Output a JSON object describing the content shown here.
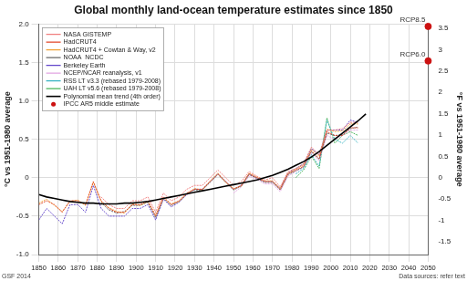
{
  "chart_data": {
    "type": "line",
    "title": "Global monthly land-ocean temperature estimates since 1850",
    "y_label": "°C vs 1951-1980 average",
    "y2_label": "°F vs 1951-1980 average",
    "credit": "GSF 2014",
    "source": "Data sources: refer text",
    "grid": true,
    "legend": "upper left",
    "xlim": [
      1850,
      2050
    ],
    "xticks": [
      1850,
      1860,
      1870,
      1880,
      1890,
      1900,
      1910,
      1920,
      1930,
      1940,
      1950,
      1960,
      1970,
      1980,
      1990,
      2000,
      2010,
      2020,
      2030,
      2040,
      2050
    ],
    "ylim": [
      -1,
      2
    ],
    "yticks": [
      {
        "value": -1,
        "label": "-1.0"
      },
      -0.5,
      0,
      0.5,
      {
        "value": 1,
        "label": "1.0"
      },
      1.5,
      {
        "value": 2,
        "label": "2.0"
      }
    ],
    "y2lim": [
      -1.8,
      3.6
    ],
    "y2ticks": [
      -1.5,
      -1,
      -0.5,
      0,
      0.5,
      1,
      1.5,
      2,
      2.5,
      3,
      3.5
    ],
    "x": [
      1850,
      1854,
      1858,
      1862,
      1866,
      1870,
      1874,
      1878,
      1882,
      1886,
      1890,
      1894,
      1898,
      1902,
      1906,
      1910,
      1914,
      1918,
      1922,
      1926,
      1930,
      1934,
      1938,
      1942,
      1946,
      1950,
      1954,
      1958,
      1962,
      1966,
      1970,
      1974,
      1978,
      1982,
      1986,
      1990,
      1994,
      1998,
      2002,
      2006,
      2010,
      2014,
      2018
    ],
    "series": [
      {
        "name": "NASA GISTEMP",
        "color": "#f07878",
        "type": "line",
        "line_style": "dotted",
        "values": [
          null,
          null,
          null,
          null,
          null,
          null,
          null,
          null,
          -0.25,
          -0.35,
          -0.4,
          -0.4,
          -0.3,
          -0.3,
          -0.25,
          -0.45,
          -0.2,
          -0.3,
          -0.25,
          -0.15,
          -0.1,
          -0.1,
          0.0,
          0.1,
          0.0,
          -0.1,
          -0.05,
          0.08,
          0.02,
          -0.03,
          0.0,
          -0.12,
          0.08,
          0.12,
          0.18,
          0.4,
          0.3,
          0.62,
          0.62,
          0.64,
          0.72,
          0.72,
          null
        ]
      },
      {
        "name": "HadCRUT4",
        "color": "#e03c1e",
        "type": "line",
        "line_style": "dotted",
        "values": [
          -0.35,
          -0.3,
          -0.35,
          -0.45,
          -0.3,
          -0.3,
          -0.35,
          -0.05,
          -0.3,
          -0.4,
          -0.45,
          -0.45,
          -0.35,
          -0.35,
          -0.3,
          -0.5,
          -0.25,
          -0.35,
          -0.3,
          -0.2,
          -0.15,
          -0.15,
          -0.05,
          0.05,
          -0.05,
          -0.15,
          -0.1,
          0.05,
          0.0,
          -0.05,
          -0.05,
          -0.15,
          0.05,
          0.1,
          0.15,
          0.35,
          0.25,
          0.6,
          0.55,
          0.55,
          0.65,
          0.65,
          null
        ]
      },
      {
        "name": "HadCRUT4 + Cowtan & Way, v2",
        "color": "#f0a030",
        "type": "line",
        "line_style": "dotted",
        "values": [
          -0.33,
          -0.28,
          -0.36,
          -0.44,
          -0.31,
          -0.29,
          -0.36,
          -0.06,
          -0.31,
          -0.39,
          -0.44,
          -0.46,
          -0.34,
          -0.36,
          -0.31,
          -0.49,
          -0.26,
          -0.34,
          -0.31,
          -0.21,
          -0.14,
          -0.16,
          -0.04,
          0.06,
          -0.06,
          -0.14,
          -0.11,
          0.06,
          0.01,
          -0.04,
          -0.04,
          -0.14,
          0.06,
          0.11,
          0.17,
          0.37,
          0.28,
          0.63,
          0.6,
          0.61,
          0.7,
          0.7,
          null
        ]
      },
      {
        "name": "NOAA  NCDC",
        "color": "#606060",
        "type": "line",
        "line_style": "dotted",
        "values": [
          null,
          null,
          null,
          null,
          null,
          null,
          null,
          null,
          -0.32,
          -0.42,
          -0.46,
          -0.44,
          -0.36,
          -0.36,
          -0.32,
          -0.52,
          -0.27,
          -0.36,
          -0.31,
          -0.21,
          -0.16,
          -0.16,
          -0.06,
          0.04,
          -0.06,
          -0.16,
          -0.11,
          0.04,
          -0.01,
          -0.06,
          -0.06,
          -0.16,
          0.04,
          0.09,
          0.14,
          0.34,
          0.24,
          0.58,
          0.55,
          0.56,
          0.64,
          0.66,
          null
        ]
      },
      {
        "name": "Berkeley Earth",
        "color": "#5a3cc8",
        "type": "line",
        "line_style": "dotted",
        "values": [
          -0.55,
          -0.4,
          -0.5,
          -0.6,
          -0.35,
          -0.35,
          -0.45,
          -0.1,
          -0.4,
          -0.5,
          -0.5,
          -0.5,
          -0.4,
          -0.4,
          -0.35,
          -0.55,
          -0.28,
          -0.38,
          -0.32,
          -0.22,
          -0.15,
          -0.15,
          -0.05,
          0.05,
          -0.05,
          -0.15,
          -0.1,
          0.05,
          0.0,
          -0.05,
          -0.05,
          -0.14,
          0.06,
          0.12,
          0.18,
          0.38,
          0.3,
          0.62,
          0.62,
          0.62,
          0.75,
          0.72,
          null
        ]
      },
      {
        "name": "NCEP/NCAR reanalysis, v1",
        "color": "#e0a0e0",
        "type": "line",
        "line_style": "dotted",
        "values": [
          null,
          null,
          null,
          null,
          null,
          null,
          null,
          null,
          null,
          null,
          null,
          null,
          null,
          null,
          null,
          null,
          null,
          null,
          null,
          null,
          null,
          null,
          null,
          null,
          null,
          -0.2,
          -0.12,
          0.02,
          -0.02,
          -0.08,
          -0.08,
          -0.18,
          0.02,
          0.08,
          0.14,
          0.32,
          0.22,
          0.55,
          0.5,
          0.55,
          0.62,
          0.62,
          null
        ]
      },
      {
        "name": "RSS LT v3.3 (rebased 1979-2008)",
        "color": "#30b0c0",
        "type": "line",
        "line_style": "dotted",
        "values": [
          null,
          null,
          null,
          null,
          null,
          null,
          null,
          null,
          null,
          null,
          null,
          null,
          null,
          null,
          null,
          null,
          null,
          null,
          null,
          null,
          null,
          null,
          null,
          null,
          null,
          null,
          null,
          null,
          null,
          null,
          null,
          null,
          null,
          0.05,
          0.12,
          0.3,
          0.15,
          0.75,
          0.5,
          0.45,
          0.55,
          0.45,
          null
        ]
      },
      {
        "name": "UAH LT v5.6 (rebased 1979-2008)",
        "color": "#40b050",
        "type": "line",
        "line_style": "dotted",
        "values": [
          null,
          null,
          null,
          null,
          null,
          null,
          null,
          null,
          null,
          null,
          null,
          null,
          null,
          null,
          null,
          null,
          null,
          null,
          null,
          null,
          null,
          null,
          null,
          null,
          null,
          null,
          null,
          null,
          null,
          null,
          null,
          null,
          null,
          0.0,
          0.1,
          0.28,
          0.12,
          0.78,
          0.45,
          0.55,
          0.6,
          0.55,
          null
        ]
      },
      {
        "name": "Polynomial mean trend (4th order)",
        "color": "#000000",
        "type": "line",
        "line_style": "solid",
        "values": [
          -0.22,
          -0.25,
          -0.27,
          -0.29,
          -0.31,
          -0.32,
          -0.33,
          -0.33,
          -0.34,
          -0.34,
          -0.34,
          -0.33,
          -0.33,
          -0.32,
          -0.31,
          -0.29,
          -0.27,
          -0.25,
          -0.23,
          -0.21,
          -0.19,
          -0.17,
          -0.15,
          -0.13,
          -0.11,
          -0.09,
          -0.07,
          -0.05,
          -0.03,
          0.0,
          0.03,
          0.07,
          0.11,
          0.16,
          0.21,
          0.27,
          0.34,
          0.42,
          0.5,
          0.58,
          0.66,
          0.74,
          0.83
        ]
      },
      {
        "name": "IPCC AR5 middle estimate",
        "color": "#cc1111",
        "type": "scatter",
        "marker": "circle",
        "x": [
          2050,
          2050
        ],
        "values": [
          1.97,
          1.52
        ],
        "labels": [
          "RCP8.5",
          "RCP6.0"
        ]
      }
    ]
  }
}
